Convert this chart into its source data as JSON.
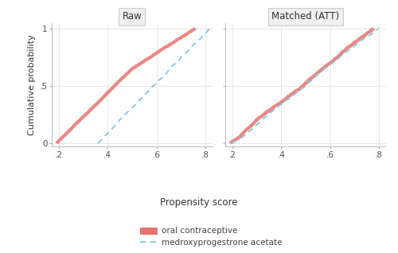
{
  "title_left": "Raw",
  "title_right": "Matched (ATT)",
  "xlabel": "Propensity score",
  "ylabel": "Cumulative probability",
  "xlim": [
    0.17,
    0.83
  ],
  "ylim": [
    -0.03,
    1.05
  ],
  "xticks": [
    0.2,
    0.4,
    0.6,
    0.8
  ],
  "xticklabels": [
    ".2",
    ".4",
    ".6",
    ".8"
  ],
  "yticks": [
    0.0,
    0.5,
    1.0
  ],
  "yticklabels": [
    "0",
    ".5",
    "1"
  ],
  "color_oc": "#E8736C",
  "color_mpa": "#7DC8E8",
  "legend_oc": "oral contraceptive",
  "legend_mpa": "medroxyprogestrone acetate",
  "background_color": "#ffffff",
  "panel_bg": "#ffffff",
  "grid_color": "#dddddd",
  "title_box_color": "#f0f0f0"
}
